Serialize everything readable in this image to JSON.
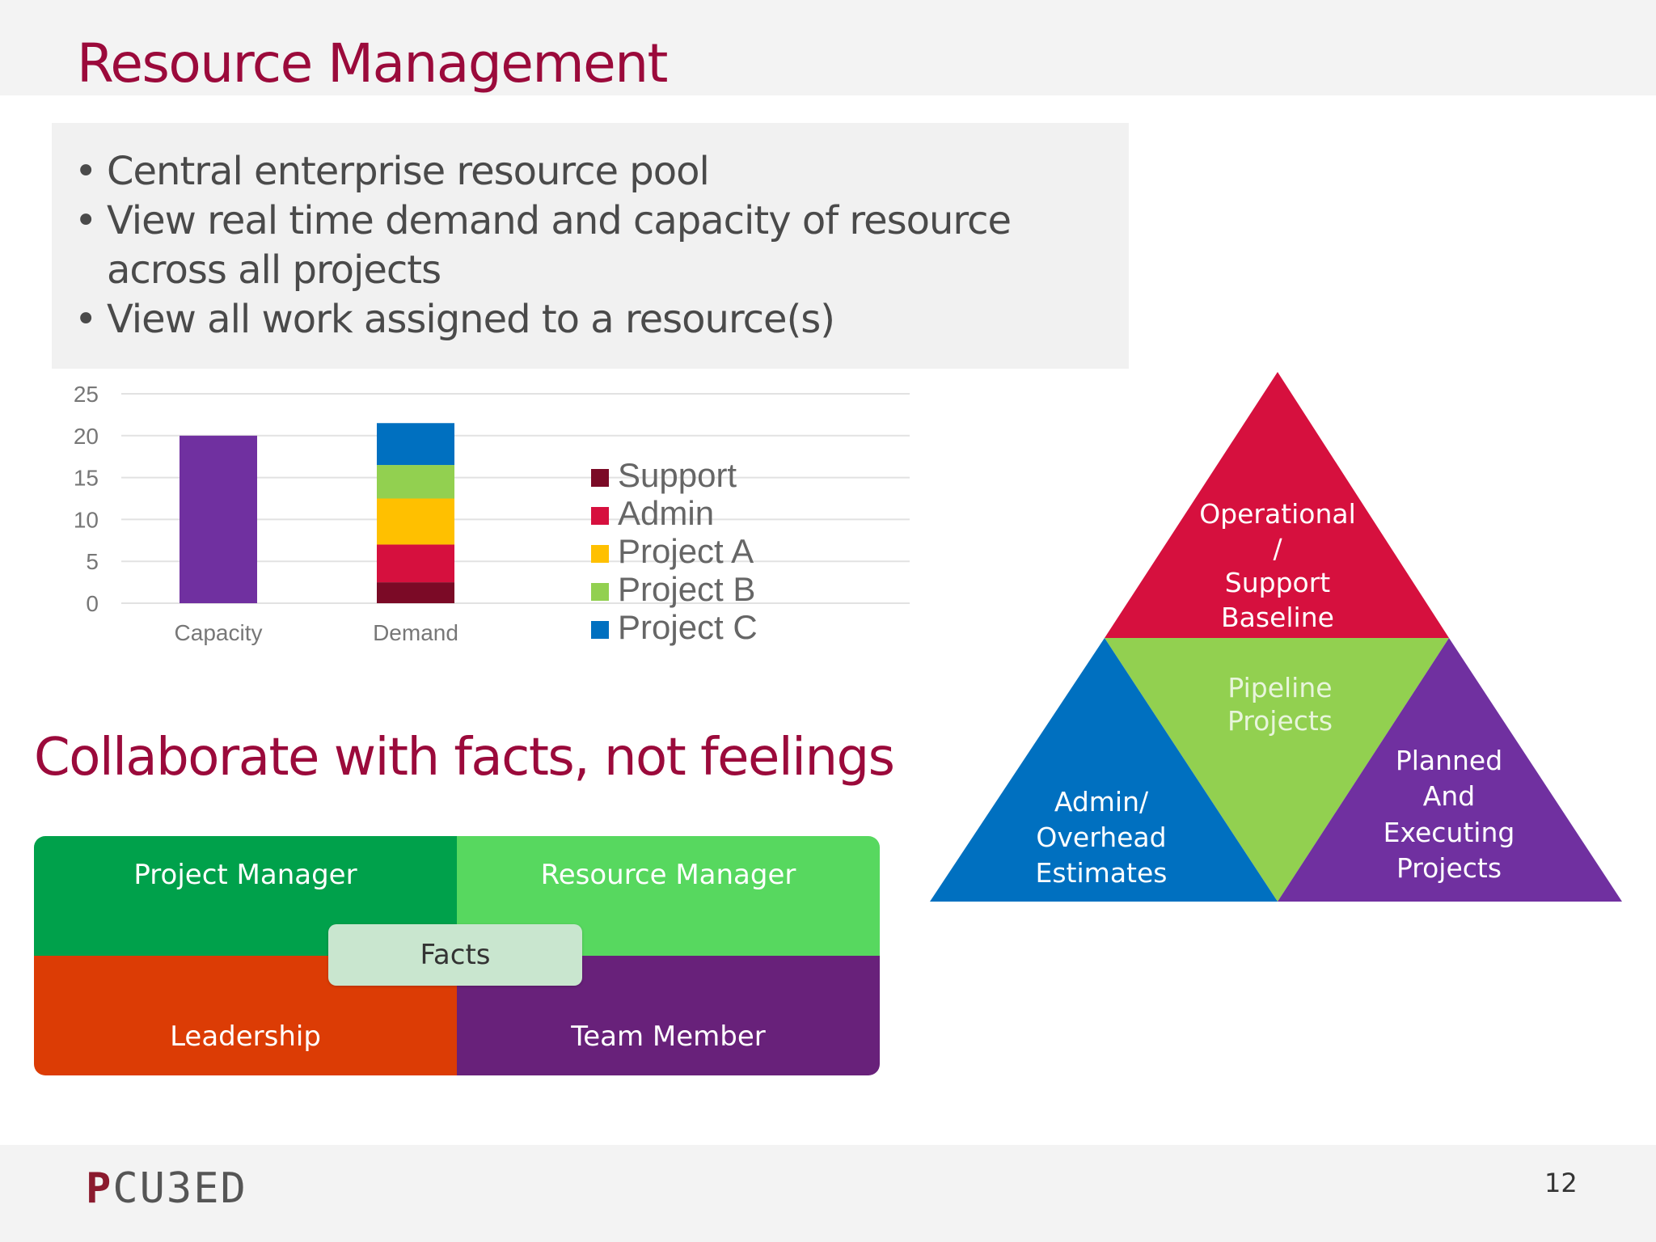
{
  "slide": {
    "title": "Resource Management",
    "bullets": [
      "Central enterprise resource pool",
      "View real time demand and capacity of resource across all projects",
      "View all work assigned to a resource(s)"
    ],
    "subtitle": "Collaborate with facts, not feelings",
    "page_number": "12",
    "logo": {
      "first": "P",
      "rest": "CU3ED"
    }
  },
  "chart_data": {
    "type": "bar",
    "stacked": true,
    "categories": [
      "Capacity",
      "Demand"
    ],
    "series": [
      {
        "name": "Capacity",
        "color": "#7030a0",
        "values": [
          20,
          0
        ]
      },
      {
        "name": "Support",
        "color": "#7b0a26",
        "values": [
          0,
          2.5
        ]
      },
      {
        "name": "Admin",
        "color": "#d6103e",
        "values": [
          0,
          4.5
        ]
      },
      {
        "name": "Project A",
        "color": "#ffc000",
        "values": [
          0,
          5.5
        ]
      },
      {
        "name": "Project B",
        "color": "#92d050",
        "values": [
          0,
          4
        ]
      },
      {
        "name": "Project C",
        "color": "#0070c0",
        "values": [
          0,
          5
        ]
      }
    ],
    "legend": [
      "Support",
      "Admin",
      "Project A",
      "Project B",
      "Project C"
    ],
    "legend_position": "right",
    "ylim": [
      0,
      25
    ],
    "yticks": [
      0,
      5,
      10,
      15,
      20,
      25
    ],
    "grid": true
  },
  "quadrants": {
    "top_left": "Project Manager",
    "top_right": "Resource Manager",
    "bottom_left": "Leadership",
    "bottom_right": "Team Member",
    "center": "Facts"
  },
  "pyramid": {
    "top": [
      "Operational",
      "/",
      "Support",
      "Baseline"
    ],
    "center": [
      "Pipeline",
      "Projects"
    ],
    "left": [
      "Admin/",
      "Overhead",
      "Estimates"
    ],
    "right": [
      "Planned",
      "And",
      "Executing",
      "Projects"
    ],
    "colors": {
      "top": "#d6103e",
      "center": "#92d050",
      "left": "#0070c0",
      "right": "#7030a0"
    }
  }
}
